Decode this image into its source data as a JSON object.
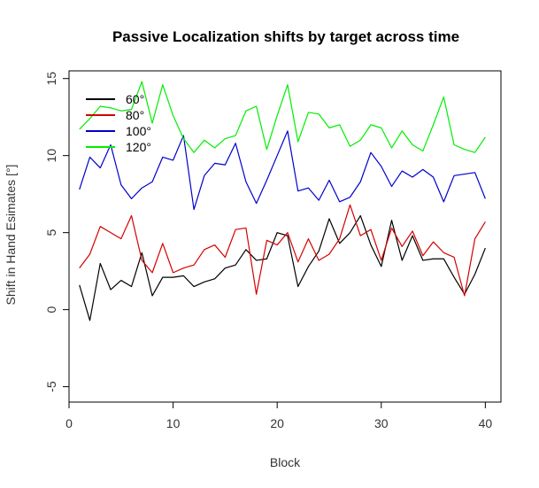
{
  "chart_data": {
    "type": "line",
    "title": "Passive Localization shifts by target across time",
    "xlabel": "Block",
    "ylabel": "Shift in Hand Esimates [°]",
    "xlim": [
      0,
      41.5
    ],
    "ylim": [
      -6,
      15.5
    ],
    "xticks": [
      0,
      10,
      20,
      30,
      40
    ],
    "yticks": [
      -5,
      0,
      5,
      10,
      15
    ],
    "grid": false,
    "legend_position": "top-left",
    "x": [
      1,
      2,
      3,
      4,
      5,
      6,
      7,
      8,
      9,
      10,
      11,
      12,
      13,
      14,
      15,
      16,
      17,
      18,
      19,
      20,
      21,
      22,
      23,
      24,
      25,
      26,
      27,
      28,
      29,
      30,
      31,
      32,
      33,
      34,
      35,
      36,
      37,
      38,
      39,
      40
    ],
    "series": [
      {
        "name": "60°",
        "color": "#000000",
        "values": [
          1.6,
          -0.7,
          3.0,
          1.3,
          1.9,
          1.5,
          3.7,
          0.9,
          2.1,
          2.1,
          2.2,
          1.5,
          1.8,
          2.0,
          2.7,
          2.9,
          3.9,
          3.2,
          3.3,
          5.0,
          4.8,
          1.5,
          2.8,
          3.8,
          5.9,
          4.3,
          5.0,
          6.1,
          4.2,
          2.8,
          5.8,
          3.2,
          4.8,
          3.2,
          3.3,
          3.3,
          2.1,
          1.0,
          2.3,
          4.0
        ]
      },
      {
        "name": "80°",
        "color": "#d40000",
        "values": [
          2.7,
          3.6,
          5.4,
          5.0,
          4.6,
          6.1,
          3.2,
          2.4,
          4.3,
          2.4,
          2.7,
          2.9,
          3.9,
          4.2,
          3.4,
          5.2,
          5.3,
          1.0,
          4.5,
          4.2,
          5.0,
          3.1,
          4.6,
          3.2,
          3.6,
          4.6,
          6.8,
          4.8,
          5.2,
          3.2,
          5.3,
          4.1,
          5.1,
          3.5,
          4.4,
          3.7,
          3.4,
          0.9,
          4.6,
          5.7
        ]
      },
      {
        "name": "100°",
        "color": "#0000cc",
        "values": [
          7.8,
          9.9,
          9.2,
          10.7,
          8.1,
          7.2,
          7.9,
          8.3,
          9.9,
          9.7,
          11.3,
          6.5,
          8.7,
          9.5,
          9.4,
          10.8,
          8.3,
          6.9,
          8.4,
          10.0,
          11.6,
          7.7,
          7.9,
          7.1,
          8.4,
          7.0,
          7.3,
          8.3,
          10.2,
          9.3,
          8.0,
          9.0,
          8.6,
          9.1,
          8.6,
          7.0,
          8.7,
          8.8,
          8.9,
          7.2
        ]
      },
      {
        "name": "120°",
        "color": "#00ee00",
        "values": [
          11.7,
          12.4,
          13.2,
          13.1,
          12.9,
          13.0,
          14.8,
          12.1,
          14.6,
          12.6,
          11.1,
          10.2,
          11.0,
          10.5,
          11.1,
          11.3,
          12.9,
          13.2,
          10.4,
          12.6,
          14.6,
          10.9,
          12.8,
          12.7,
          11.8,
          12.0,
          10.6,
          11.0,
          12.0,
          11.8,
          10.5,
          11.6,
          10.7,
          10.3,
          12.0,
          13.8,
          10.7,
          10.4,
          10.2,
          11.2
        ]
      }
    ]
  }
}
